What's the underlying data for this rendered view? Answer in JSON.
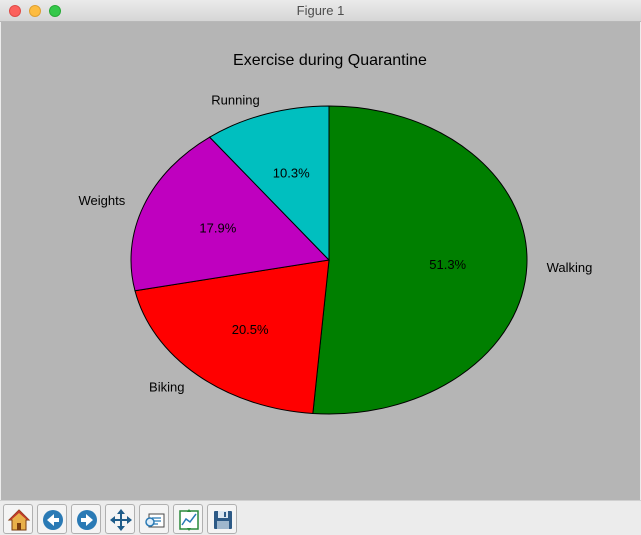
{
  "window": {
    "title": "Figure 1"
  },
  "chart_data": {
    "type": "pie",
    "title": "Exercise during Quarantine",
    "labels": [
      "Walking",
      "Biking",
      "Weights",
      "Running"
    ],
    "values": [
      51.3,
      20.5,
      17.9,
      10.3
    ],
    "percent_labels": [
      "51.3%",
      "20.5%",
      "17.9%",
      "10.3%"
    ],
    "colors": [
      "#007f00",
      "#ff0000",
      "#bf00bf",
      "#00bfbf"
    ],
    "start_angle_deg": 90,
    "direction": "clockwise",
    "edge_color": "#000000"
  },
  "toolbar": {
    "buttons": [
      {
        "name": "home-button",
        "icon": "home-icon"
      },
      {
        "name": "back-button",
        "icon": "back-arrow-icon"
      },
      {
        "name": "forward-button",
        "icon": "forward-arrow-icon"
      },
      {
        "name": "pan-button",
        "icon": "move-arrows-icon"
      },
      {
        "name": "zoom-button",
        "icon": "zoom-rect-icon"
      },
      {
        "name": "subplots-button",
        "icon": "subplots-icon"
      },
      {
        "name": "save-button",
        "icon": "floppy-disk-icon"
      }
    ]
  }
}
